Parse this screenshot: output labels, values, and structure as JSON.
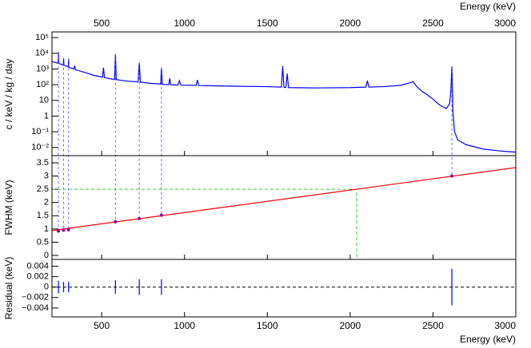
{
  "chart_data": [
    {
      "type": "line",
      "y_label": "c / keV / kg / day",
      "x_label": "Energy (keV)",
      "log_y": true,
      "xlim": [
        200,
        3000
      ],
      "xticks": [
        500,
        1000,
        1500,
        2000,
        2500,
        3000
      ],
      "ylim": [
        0.003,
        230000
      ],
      "yticks": [
        {
          "value": 100000,
          "label": "10⁵"
        },
        {
          "value": 10000,
          "label": "10⁴"
        },
        {
          "value": 1000,
          "label": "10³"
        },
        {
          "value": 100,
          "label": "10²"
        },
        10,
        1,
        {
          "value": 0.1,
          "label": "10⁻¹"
        },
        {
          "value": 0.01,
          "label": "10⁻²"
        }
      ],
      "series": [
        {
          "color": "#0000ff",
          "x": [
            200,
            215,
            230,
            238,
            239,
            240,
            255,
            268,
            270,
            272,
            290,
            299,
            300,
            301,
            330,
            338,
            340,
            400,
            450,
            505,
            511,
            517,
            560,
            578,
            583,
            588,
            650,
            720,
            727,
            734,
            800,
            856,
            861,
            866,
            905,
            911,
            917,
            960,
            969,
            978,
            1070,
            1078,
            1086,
            1300,
            1500,
            1585,
            1593,
            1600,
            1612,
            1620,
            1628,
            1800,
            2000,
            2095,
            2104,
            2113,
            2200,
            2300,
            2360,
            2380,
            2400,
            2430,
            2460,
            2500,
            2540,
            2580,
            2600,
            2608,
            2614,
            2620,
            2630,
            2650,
            2700,
            2800,
            2900,
            3000
          ],
          "values": [
            3000,
            2700,
            2400,
            2500,
            12000,
            2300,
            2000,
            1800,
            5000,
            1700,
            1500,
            1400,
            4500,
            1300,
            1000,
            1600,
            900,
            600,
            400,
            300,
            1200,
            280,
            230,
            220,
            9000,
            210,
            170,
            150,
            2500,
            145,
            120,
            110,
            1200,
            105,
            100,
            250,
            98,
            95,
            180,
            93,
            90,
            200,
            88,
            80,
            75,
            70,
            1500,
            68,
            66,
            500,
            65,
            62,
            65,
            70,
            180,
            70,
            75,
            90,
            130,
            160,
            80,
            40,
            25,
            12,
            5,
            3,
            6,
            40,
            1500,
            2,
            0.1,
            0.03,
            0.015,
            0.008,
            0.006,
            0.005
          ]
        }
      ]
    },
    {
      "type": "calibration",
      "y_label": "FWHM (keV)",
      "xlim": [
        200,
        3000
      ],
      "ylim": [
        -0.15,
        3.77
      ],
      "yticks": [
        0,
        0.5,
        1,
        1.5,
        2,
        2.5,
        3,
        3.5
      ],
      "points": {
        "color": "#990099",
        "x": [
          239,
          270,
          300,
          583,
          727,
          861,
          2614
        ],
        "values": [
          0.92,
          0.95,
          0.97,
          1.27,
          1.39,
          1.52,
          3.0
        ]
      },
      "fit": {
        "color": "#ff0000",
        "x": [
          200,
          3000
        ],
        "values": [
          0.94,
          3.32
        ]
      },
      "marker": {
        "color": "#33cc33",
        "x": 2039,
        "y": 2.5
      }
    },
    {
      "type": "residual",
      "y_label": "Residual (keV)",
      "x_label": "Energy (keV)",
      "xlim": [
        200,
        3000
      ],
      "xticks": [
        500,
        1000,
        1500,
        2000,
        2500,
        3000
      ],
      "ylim": [
        -0.0057,
        0.0053
      ],
      "yticks": [
        0.004,
        0.002,
        0,
        {
          "value": -0.002,
          "label": "−0.002"
        },
        {
          "value": -0.004,
          "label": "−0.004"
        }
      ],
      "color": "#0000ff",
      "x": [
        239,
        270,
        300,
        583,
        727,
        861,
        2614
      ],
      "values": [
        0,
        0,
        0,
        0,
        0,
        0,
        0
      ],
      "errors": [
        0.0012,
        0.001,
        0.001,
        0.0013,
        0.0015,
        0.0015,
        0.0035
      ]
    }
  ]
}
